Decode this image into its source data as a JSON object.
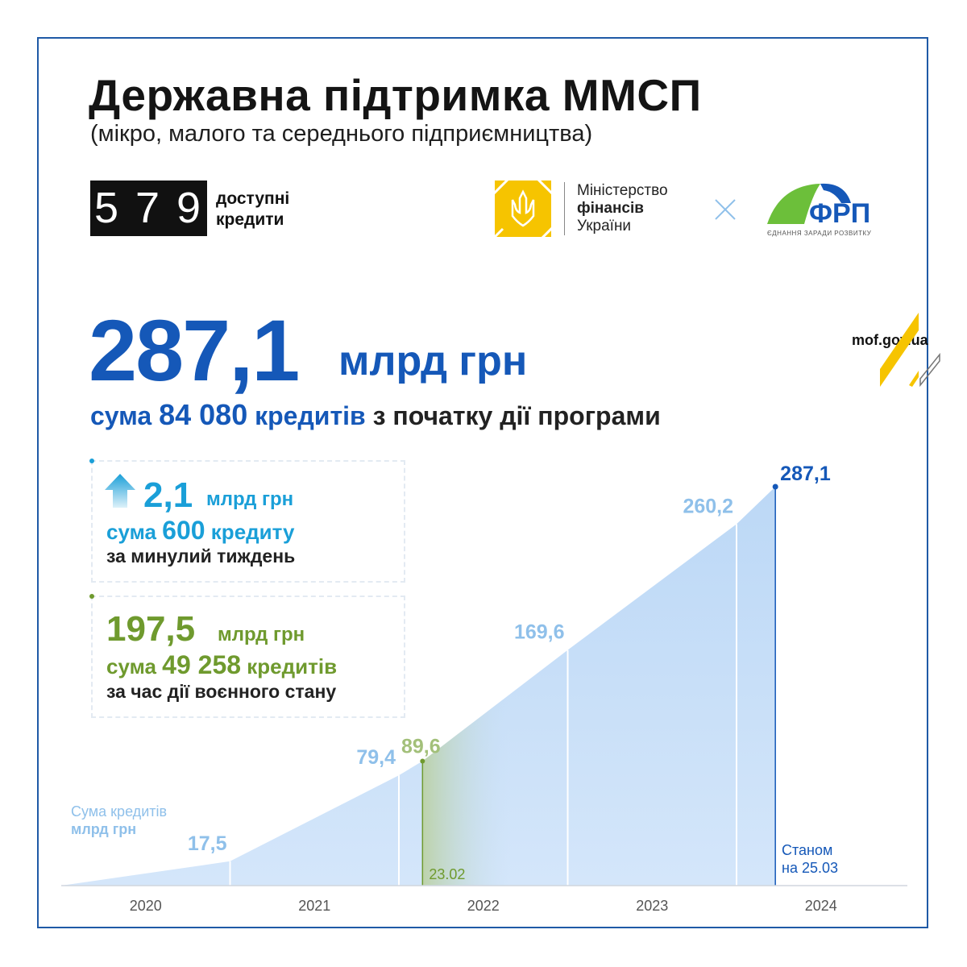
{
  "header": {
    "title": "Державна підтримка ММСП",
    "subtitle": "(мікро, малого та середнього підприємництва)"
  },
  "logos": {
    "program": {
      "mark": "5 7 9",
      "line1": "доступні",
      "line2": "кредити"
    },
    "ministry": {
      "line1": "Міністерство",
      "line2": "фінансів",
      "line3": "України"
    },
    "fund": {
      "mark": "ФРП",
      "tagline": "ЄДНАННЯ ЗАРАДИ РОЗВИТКУ"
    },
    "website": "mof.gov.ua"
  },
  "headline": {
    "value": "287,1",
    "unit": "млрд грн",
    "sub_prefix": "сума",
    "sub_count": "84 080",
    "sub_noun": "кредитів",
    "sub_suffix": "з початку дії програми"
  },
  "weekly": {
    "value": "2,1",
    "unit": "млрд грн",
    "prefix": "сума",
    "count": "600",
    "noun": "кредиту",
    "period": "за минулий тиждень"
  },
  "martial_law": {
    "value": "197,5",
    "unit": "млрд грн",
    "prefix": "сума",
    "count": "49 258",
    "noun": "кредитів",
    "period": "за час дії воєнного стану"
  },
  "colors": {
    "primary_blue": "#1558b8",
    "light_blue": "#8fc0ea",
    "area_fill": "#c4ddf7",
    "accent_cyan": "#1a9fd8",
    "accent_green": "#6f9a2e",
    "marker_green_light": "#a3c07a"
  },
  "chart_data": {
    "type": "area",
    "ylabel_line1": "Сума кредитів",
    "ylabel_line2": "млрд грн",
    "x_categories": [
      "2020",
      "2021",
      "2022",
      "2023",
      "2024"
    ],
    "series": [
      {
        "points": [
          {
            "x": 0.0,
            "y": 0
          },
          {
            "x": 1.0,
            "y": 17.5
          },
          {
            "x": 2.0,
            "y": 79.4
          },
          {
            "x": 2.14,
            "y": 89.6
          },
          {
            "x": 3.0,
            "y": 169.6
          },
          {
            "x": 4.0,
            "y": 260.2
          },
          {
            "x": 4.23,
            "y": 287.1
          }
        ]
      }
    ],
    "labels": [
      {
        "x": 1.0,
        "y": 17.5,
        "text": "17,5",
        "style": "light"
      },
      {
        "x": 2.0,
        "y": 79.4,
        "text": "79,4",
        "style": "light"
      },
      {
        "x": 2.14,
        "y": 89.6,
        "text": "89,6",
        "style": "green"
      },
      {
        "x": 3.0,
        "y": 169.6,
        "text": "169,6",
        "style": "light"
      },
      {
        "x": 4.0,
        "y": 260.2,
        "text": "260,2",
        "style": "light"
      },
      {
        "x": 4.23,
        "y": 287.1,
        "text": "287,1",
        "style": "dark"
      }
    ],
    "markers": [
      {
        "x": 2.14,
        "label": "23.02"
      }
    ],
    "end_note_line1": "Станом",
    "end_note_line2": "на 25.03",
    "ylim": [
      0,
      300
    ],
    "grid": false
  }
}
